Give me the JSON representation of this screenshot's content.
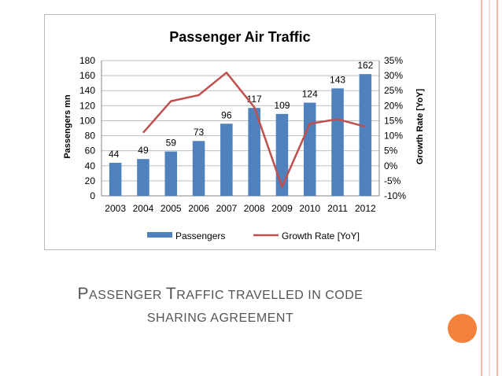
{
  "slide": {
    "caption_line1_cap1": "P",
    "caption_line1_rest1": "ASSENGER ",
    "caption_line1_cap2": "T",
    "caption_line1_rest2": "RAFFIC TRAVELLED IN CODE",
    "caption_line2": "SHARING AGREEMENT",
    "accent_color": "#f3813a",
    "edge_line_color": "#f4b8a3"
  },
  "chart_data": {
    "type": "bar",
    "title": "Passenger Air Traffic",
    "xlabel": "",
    "ylabel": "Passengers mn",
    "y2label": "Growth Rate [YoY]",
    "categories": [
      "2003",
      "2004",
      "2005",
      "2006",
      "2007",
      "2008",
      "2009",
      "2010",
      "2011",
      "2012"
    ],
    "ylim": [
      0,
      180
    ],
    "yticks": [
      "0",
      "20",
      "40",
      "60",
      "80",
      "100",
      "120",
      "140",
      "160",
      "180"
    ],
    "y2lim": [
      -10,
      35
    ],
    "y2ticks": [
      "-10%",
      "-5%",
      "0%",
      "5%",
      "10%",
      "15%",
      "20%",
      "25%",
      "30%",
      "35%"
    ],
    "grid": true,
    "legend_position": "bottom",
    "series": [
      {
        "name": "Passengers",
        "kind": "bar",
        "color": "#4f81bd",
        "values": [
          44,
          49,
          59,
          73,
          96,
          117,
          109,
          124,
          143,
          162
        ],
        "labels": [
          "44",
          "49",
          "59",
          "73",
          "96",
          "117",
          "109",
          "124",
          "143",
          "162"
        ]
      },
      {
        "name": "Growth Rate [YoY]",
        "kind": "line",
        "axis": "secondary",
        "color": "#c0504d",
        "values": [
          null,
          11,
          21.5,
          23.5,
          31,
          19.5,
          -7,
          14,
          15.5,
          13
        ]
      }
    ]
  }
}
